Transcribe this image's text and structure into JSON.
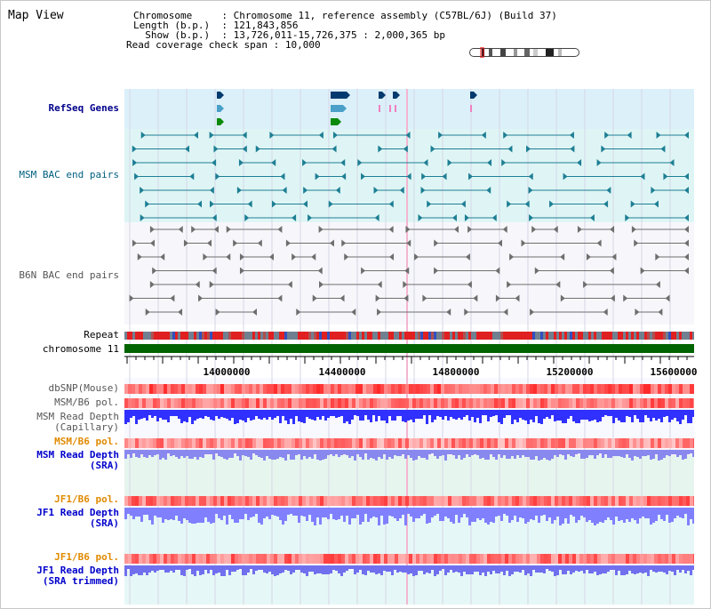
{
  "header": {
    "title": "Map View",
    "info_rows": [
      {
        "key": "Chromosome    ",
        "sep": " : ",
        "value": "Chromosome 11, reference assembly (C57BL/6J) (Build 37)"
      },
      {
        "key": "Length (b.p.) ",
        "sep": " : ",
        "value": "121,843,856"
      },
      {
        "key": "  Show (b.p.) ",
        "sep": " : ",
        "value": "13,726,011-15,726,375 : 2,000,365 bp"
      },
      {
        "key": "Read coverage check span",
        "sep": " : ",
        "value": "10,000"
      }
    ]
  },
  "tracks": {
    "refseq": "RefSeq Genes",
    "msm_bac": "MSM BAC end pairs",
    "b6n_bac": "B6N BAC end pairs",
    "repeat": "Repeat",
    "chromosome": "chromosome 11",
    "dbsnp": "dbSNP(Mouse)",
    "msm_b6_pol": "MSM/B6 pol.",
    "msm_read_depth_cap_1": "MSM Read Depth",
    "msm_read_depth_cap_2": "(Capillary)",
    "msm_b6_pol_2": "MSM/B6 pol.",
    "msm_read_depth_sra_1": "MSM Read Depth",
    "msm_read_depth_sra_2": "(SRA)",
    "jf1_b6_pol": "JF1/B6 pol.",
    "jf1_read_depth_1": "JF1 Read Depth",
    "jf1_read_depth_2": "(SRA)",
    "jf1_b6_pol_2": "JF1/B6 pol.",
    "jf1_read_depth_trim_1": "JF1 Read Depth",
    "jf1_read_depth_trim_2": "(SRA trimmed)"
  },
  "axis": {
    "ticks": [
      "14000000",
      "14400000",
      "14800000",
      "15200000",
      "15600000"
    ]
  },
  "colors": {
    "refseq_bg": "#dcf0fa",
    "msm_bg": "#dff5f5",
    "gene_dark": "#003a6e",
    "gene_light": "#4aa0c8",
    "gene_green": "#0a8a0a",
    "bac_teal": "#1e7f94",
    "bac_gray": "#6e6e6e",
    "chromosome": "#006400",
    "depth_blue": "#3030ff",
    "depth_light": "#8080ff",
    "pol_red": "#ff3030"
  }
}
